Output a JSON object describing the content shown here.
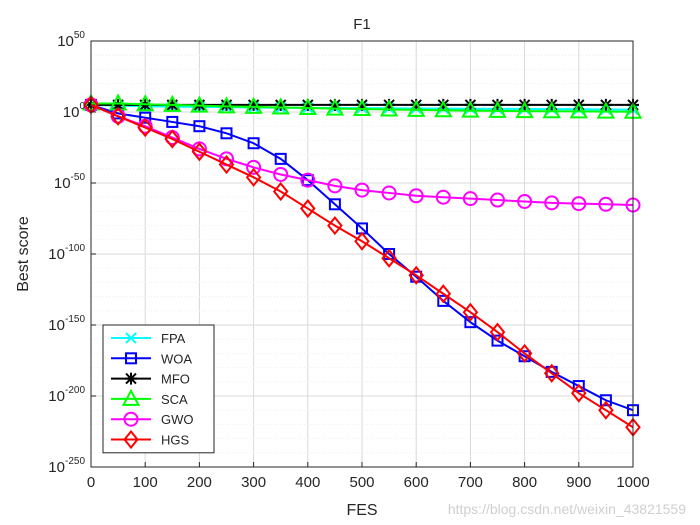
{
  "chart_data": {
    "type": "line",
    "title": "F1",
    "xlabel": "FES",
    "ylabel": "Best score",
    "xlim": [
      0,
      1000
    ],
    "ylim_exponent": [
      -250,
      50
    ],
    "yscale": "log",
    "grid": true,
    "legend_position": "bottom-left",
    "x_ticks": [
      0,
      100,
      200,
      300,
      400,
      500,
      600,
      700,
      800,
      900,
      1000
    ],
    "y_tick_exponents": [
      50,
      0,
      -50,
      -100,
      -150,
      -200,
      -250
    ],
    "y_tick_base": "10",
    "series": [
      {
        "name": "FPA",
        "color": "#00ffff",
        "marker": "x",
        "x": [
          0,
          50,
          100,
          150,
          200,
          250,
          300,
          350,
          400,
          450,
          500,
          550,
          600,
          650,
          700,
          750,
          800,
          850,
          900,
          950,
          1000
        ],
        "log10_y": [
          5,
          4.5,
          4,
          3.8,
          3.6,
          3.4,
          3.2,
          3,
          2.9,
          2.8,
          2.7,
          2.6,
          2.5,
          2.4,
          2.3,
          2.2,
          2.1,
          2,
          1.9,
          1.8,
          1.7
        ]
      },
      {
        "name": "WOA",
        "color": "#0000ff",
        "marker": "square",
        "x": [
          0,
          50,
          100,
          150,
          200,
          250,
          300,
          350,
          400,
          450,
          500,
          550,
          600,
          650,
          700,
          750,
          800,
          850,
          900,
          950,
          1000
        ],
        "log10_y": [
          5,
          -1,
          -4,
          -7,
          -10,
          -15,
          -22,
          -33,
          -48,
          -65,
          -82,
          -100,
          -116,
          -133,
          -148,
          -161,
          -172,
          -183,
          -193,
          -203,
          -210
        ]
      },
      {
        "name": "MFO",
        "color": "#000000",
        "marker": "star",
        "x": [
          0,
          50,
          100,
          150,
          200,
          250,
          300,
          350,
          400,
          450,
          500,
          550,
          600,
          650,
          700,
          750,
          800,
          850,
          900,
          950,
          1000
        ],
        "log10_y": [
          5,
          5,
          5,
          5,
          5,
          5,
          5,
          5,
          5,
          5,
          5,
          5,
          5,
          5,
          5,
          5,
          5,
          5,
          5,
          5,
          5
        ]
      },
      {
        "name": "SCA",
        "color": "#00ff00",
        "marker": "triangle",
        "x": [
          0,
          50,
          100,
          150,
          200,
          250,
          300,
          350,
          400,
          450,
          500,
          550,
          600,
          650,
          700,
          750,
          800,
          850,
          900,
          950,
          1000
        ],
        "log10_y": [
          6,
          6,
          5.5,
          5,
          4.5,
          4,
          3.6,
          3.2,
          2.8,
          2.4,
          2.1,
          1.8,
          1.5,
          1.2,
          1,
          0.8,
          0.6,
          0.5,
          0.4,
          0.3,
          0.2
        ]
      },
      {
        "name": "GWO",
        "color": "#ff00ff",
        "marker": "circle",
        "x": [
          0,
          50,
          100,
          150,
          200,
          250,
          300,
          350,
          400,
          450,
          500,
          550,
          600,
          650,
          700,
          750,
          800,
          850,
          900,
          950,
          1000
        ],
        "log10_y": [
          5,
          -3,
          -10,
          -18,
          -26,
          -33,
          -39,
          -44,
          -48,
          -52,
          -55,
          -57,
          -59,
          -60,
          -61,
          -62,
          -63,
          -64,
          -64.5,
          -65,
          -65.5
        ]
      },
      {
        "name": "HGS",
        "color": "#ff0000",
        "marker": "diamond",
        "x": [
          0,
          50,
          100,
          150,
          200,
          250,
          300,
          350,
          400,
          450,
          500,
          550,
          600,
          650,
          700,
          750,
          800,
          850,
          900,
          950,
          1000
        ],
        "log10_y": [
          5,
          -3,
          -11,
          -19,
          -28,
          -37,
          -46,
          -56,
          -68,
          -80,
          -91,
          -103,
          -115,
          -128,
          -141,
          -155,
          -170,
          -184,
          -198,
          -210,
          -222
        ]
      }
    ]
  },
  "watermark": "https://blog.csdn.net/weixin_43821559"
}
